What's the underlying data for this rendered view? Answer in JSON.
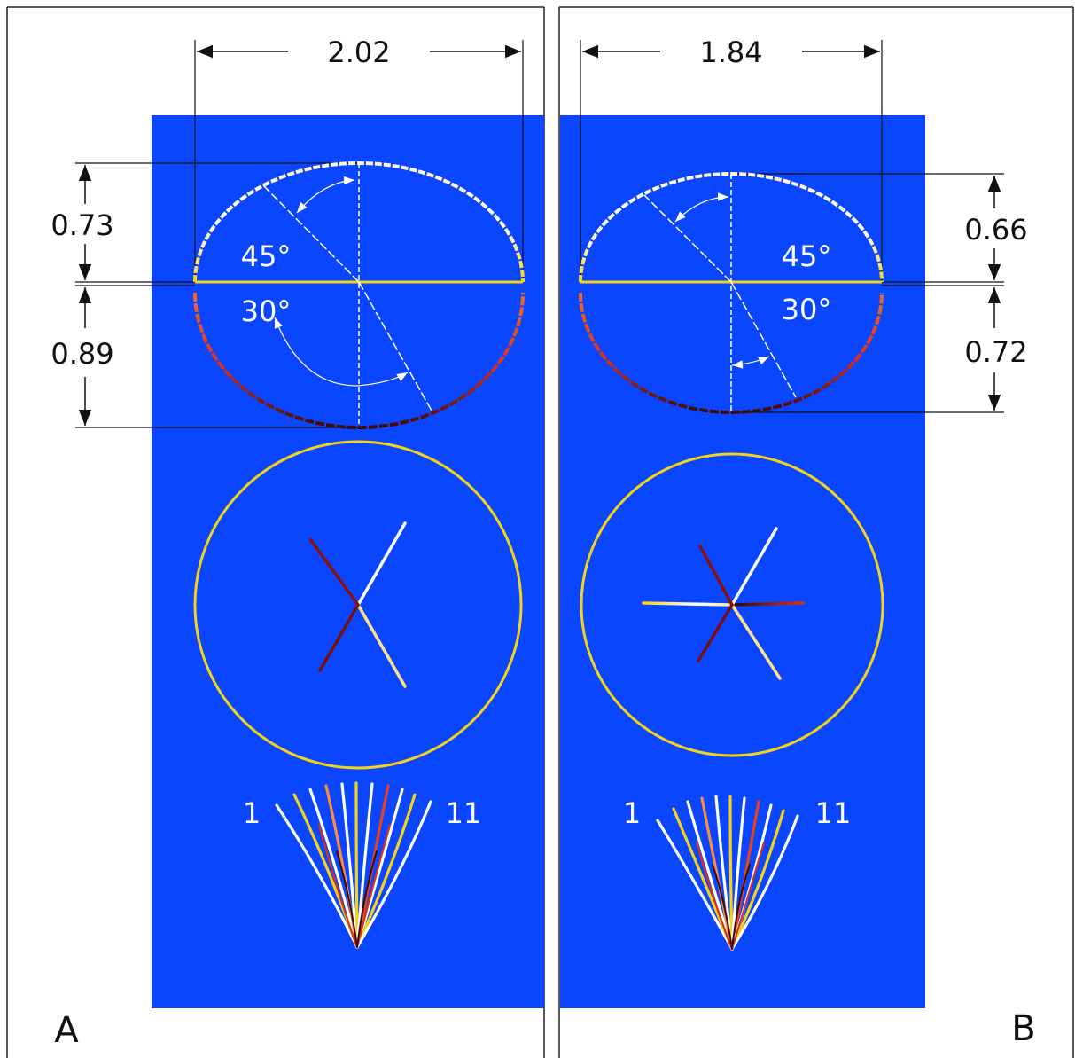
{
  "colors": {
    "background": "#0a46ff",
    "outline": "#f4d21a",
    "ray_hot": "#ffffff",
    "ray_warm": "#e8421b",
    "ray_dark": "#3a0a0a",
    "dimension_line": "#111111"
  },
  "panels": [
    {
      "label": "A",
      "width_label": "2.02",
      "upper_height_label": "0.73",
      "lower_height_label": "0.89",
      "angle_upper_label": "45°",
      "angle_lower_label": "30°",
      "fan_first_label": "1",
      "fan_last_label": "11",
      "values": {
        "width": 2.02,
        "upper_height": 0.73,
        "lower_height": 0.89,
        "angle_upper_deg": 45,
        "angle_lower_deg": 30,
        "fan_count": 11
      }
    },
    {
      "label": "B",
      "width_label": "1.84",
      "upper_height_label": "0.66",
      "lower_height_label": "0.72",
      "angle_upper_label": "45°",
      "angle_lower_label": "30°",
      "fan_first_label": "1",
      "fan_last_label": "11",
      "values": {
        "width": 1.84,
        "upper_height": 0.66,
        "lower_height": 0.72,
        "angle_upper_deg": 45,
        "angle_lower_deg": 30,
        "fan_count": 11
      }
    }
  ]
}
